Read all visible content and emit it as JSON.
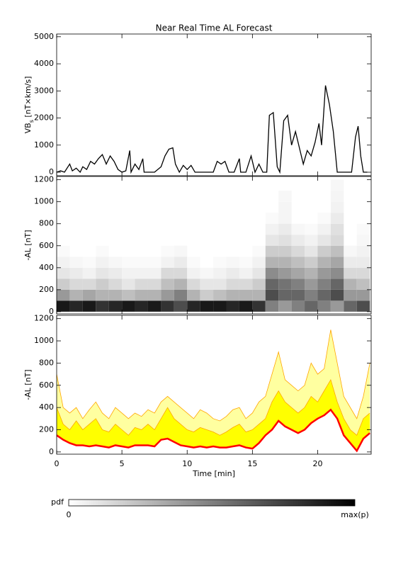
{
  "chart_data": [
    {
      "type": "line",
      "title": "Near Real Time AL Forecast",
      "ylabel": [
        "VB",
        "s",
        " [nT×km/s]"
      ],
      "x": [
        0,
        0.3,
        0.6,
        1.0,
        1.2,
        1.5,
        1.8,
        2.0,
        2.3,
        2.6,
        2.9,
        3.2,
        3.5,
        3.8,
        4.1,
        4.4,
        4.7,
        5.0,
        5.3,
        5.6,
        5.7,
        6.0,
        6.3,
        6.6,
        6.7,
        7.0,
        7.5,
        8.0,
        8.3,
        8.6,
        8.9,
        9.1,
        9.4,
        9.7,
        10.0,
        10.3,
        10.6,
        11.0,
        11.5,
        12.0,
        12.3,
        12.6,
        12.9,
        13.2,
        13.6,
        14.0,
        14.1,
        14.5,
        14.9,
        15.2,
        15.5,
        15.8,
        16.1,
        16.3,
        16.6,
        16.9,
        17.1,
        17.4,
        17.7,
        18.0,
        18.3,
        18.6,
        18.9,
        19.2,
        19.5,
        19.8,
        20.1,
        20.3,
        20.6,
        20.9,
        21.2,
        21.5,
        21.8,
        22.2,
        22.6,
        22.9,
        23.1,
        23.3,
        23.5,
        23.8
      ],
      "series": [
        {
          "color": "#000000",
          "values": [
            0,
            50,
            0,
            300,
            50,
            150,
            0,
            200,
            100,
            400,
            300,
            500,
            650,
            300,
            600,
            400,
            100,
            0,
            50,
            800,
            0,
            300,
            100,
            500,
            0,
            0,
            0,
            200,
            600,
            850,
            900,
            300,
            0,
            250,
            100,
            250,
            0,
            0,
            0,
            0,
            400,
            300,
            400,
            0,
            0,
            500,
            0,
            0,
            600,
            0,
            300,
            0,
            0,
            2100,
            2200,
            200,
            0,
            1900,
            2100,
            1000,
            1500,
            900,
            300,
            800,
            600,
            1100,
            1800,
            1000,
            3200,
            2500,
            1500,
            0,
            0,
            0,
            0,
            1300,
            1700,
            600,
            0,
            0
          ]
        }
      ],
      "xlim": [
        0,
        24.1
      ],
      "xticks": [
        0,
        5,
        10,
        15,
        20
      ],
      "ylim": [
        -130,
        5100
      ],
      "yticks": [
        0,
        1000,
        2000,
        3000,
        4000,
        5000
      ]
    },
    {
      "type": "heatmap",
      "ylabel": [
        "-AL [nT]"
      ],
      "xbins": [
        0,
        1,
        2,
        3,
        4,
        5,
        6,
        7,
        8,
        9,
        10,
        11,
        12,
        13,
        14,
        15,
        16,
        17,
        18,
        19,
        20,
        21,
        22,
        23,
        24
      ],
      "ybins": [
        0,
        100,
        200,
        300,
        400,
        500,
        600,
        700,
        800,
        900,
        1000,
        1100,
        1200
      ],
      "z": [
        [
          0.9,
          0.85,
          0.9,
          0.8,
          0.85,
          0.9,
          0.85,
          0.9,
          0.8,
          0.7,
          0.85,
          0.9,
          0.9,
          0.85,
          0.9,
          0.8,
          0.5,
          0.4,
          0.5,
          0.6,
          0.5,
          0.4,
          0.6,
          0.7
        ],
        [
          0.4,
          0.3,
          0.35,
          0.3,
          0.3,
          0.25,
          0.3,
          0.3,
          0.4,
          0.5,
          0.3,
          0.2,
          0.25,
          0.3,
          0.3,
          0.3,
          0.7,
          0.6,
          0.6,
          0.5,
          0.6,
          0.7,
          0.4,
          0.4
        ],
        [
          0.2,
          0.15,
          0.15,
          0.2,
          0.15,
          0.1,
          0.15,
          0.15,
          0.25,
          0.3,
          0.15,
          0.1,
          0.1,
          0.15,
          0.15,
          0.2,
          0.6,
          0.55,
          0.5,
          0.4,
          0.5,
          0.6,
          0.3,
          0.25
        ],
        [
          0.1,
          0.08,
          0.05,
          0.1,
          0.08,
          0.05,
          0.05,
          0.05,
          0.15,
          0.15,
          0.05,
          0.03,
          0.05,
          0.08,
          0.05,
          0.1,
          0.45,
          0.4,
          0.35,
          0.3,
          0.4,
          0.45,
          0.15,
          0.15
        ],
        [
          0.05,
          0.03,
          0.02,
          0.05,
          0.03,
          0.02,
          0.02,
          0.02,
          0.05,
          0.08,
          0.02,
          0,
          0.02,
          0.03,
          0.02,
          0.05,
          0.3,
          0.3,
          0.25,
          0.2,
          0.3,
          0.35,
          0.08,
          0.08
        ],
        [
          0.02,
          0,
          0,
          0.02,
          0,
          0,
          0,
          0,
          0.02,
          0.03,
          0,
          0,
          0,
          0,
          0,
          0.02,
          0.2,
          0.2,
          0.15,
          0.1,
          0.2,
          0.25,
          0.03,
          0.05
        ],
        [
          0,
          0,
          0,
          0,
          0,
          0,
          0,
          0,
          0,
          0,
          0,
          0,
          0,
          0,
          0,
          0,
          0.1,
          0.12,
          0.08,
          0.05,
          0.1,
          0.15,
          0,
          0.03
        ],
        [
          0,
          0,
          0,
          0,
          0,
          0,
          0,
          0,
          0,
          0,
          0,
          0,
          0,
          0,
          0,
          0,
          0.05,
          0.08,
          0.03,
          0.02,
          0.05,
          0.12,
          0,
          0.02
        ],
        [
          0,
          0,
          0,
          0,
          0,
          0,
          0,
          0,
          0,
          0,
          0,
          0,
          0,
          0,
          0,
          0,
          0.02,
          0.04,
          0,
          0,
          0.02,
          0.08,
          0,
          0
        ],
        [
          0,
          0,
          0,
          0,
          0,
          0,
          0,
          0,
          0,
          0,
          0,
          0,
          0,
          0,
          0,
          0,
          0,
          0.04,
          0,
          0,
          0,
          0.05,
          0,
          0
        ],
        [
          0,
          0,
          0,
          0,
          0,
          0,
          0,
          0,
          0,
          0,
          0,
          0,
          0,
          0,
          0,
          0,
          0,
          0.03,
          0,
          0,
          0,
          0.04,
          0,
          0
        ],
        [
          0,
          0,
          0,
          0,
          0,
          0,
          0,
          0,
          0,
          0,
          0,
          0,
          0,
          0,
          0,
          0,
          0,
          0,
          0,
          0,
          0,
          0.03,
          0,
          0
        ]
      ],
      "xlim": [
        0,
        24.1
      ],
      "xticks": [
        0,
        5,
        10,
        15,
        20
      ],
      "ylim": [
        -20,
        1230
      ],
      "yticks": [
        0,
        200,
        400,
        600,
        800,
        1000,
        1200
      ],
      "colorbar": [
        "pdf",
        "0",
        "max(p)"
      ]
    },
    {
      "type": "band",
      "ylabel": [
        "-AL [nT]"
      ],
      "xlabel": "Time [min]",
      "x": [
        0,
        0.5,
        1,
        1.5,
        2,
        2.5,
        3,
        3.5,
        4,
        4.5,
        5,
        5.5,
        6,
        6.5,
        7,
        7.5,
        8,
        8.5,
        9,
        9.5,
        10,
        10.5,
        11,
        11.5,
        12,
        12.5,
        13,
        13.5,
        14,
        14.5,
        15,
        15.5,
        16,
        16.5,
        17,
        17.5,
        18,
        18.5,
        19,
        19.5,
        20,
        20.5,
        21,
        21.5,
        22,
        22.5,
        23,
        23.5,
        24
      ],
      "series": [
        {
          "color": "#ff0000",
          "values": [
            150,
            110,
            80,
            60,
            60,
            50,
            60,
            50,
            40,
            60,
            50,
            40,
            60,
            60,
            60,
            50,
            110,
            120,
            90,
            60,
            50,
            40,
            50,
            40,
            50,
            40,
            40,
            50,
            60,
            40,
            30,
            80,
            150,
            200,
            280,
            230,
            200,
            170,
            200,
            260,
            300,
            330,
            380,
            300,
            150,
            80,
            10,
            120,
            170
          ]
        },
        {
          "color": "#ffa500",
          "fill": "#ffff00",
          "values": [
            400,
            250,
            200,
            280,
            200,
            250,
            300,
            200,
            180,
            250,
            200,
            150,
            220,
            200,
            250,
            200,
            300,
            400,
            300,
            250,
            200,
            180,
            220,
            200,
            180,
            150,
            180,
            220,
            250,
            180,
            200,
            250,
            300,
            450,
            550,
            450,
            400,
            350,
            400,
            500,
            450,
            550,
            650,
            450,
            300,
            200,
            150,
            300,
            350
          ]
        },
        {
          "color": "#ffa500",
          "fill": "#ffffa0",
          "values": [
            700,
            400,
            350,
            400,
            300,
            380,
            450,
            350,
            300,
            400,
            350,
            300,
            350,
            320,
            380,
            350,
            450,
            500,
            450,
            400,
            350,
            300,
            380,
            350,
            300,
            280,
            320,
            380,
            400,
            300,
            350,
            450,
            500,
            700,
            900,
            650,
            600,
            550,
            600,
            800,
            700,
            750,
            1100,
            800,
            500,
            400,
            300,
            500,
            800
          ]
        }
      ],
      "xlim": [
        0,
        24.1
      ],
      "xticks": [
        0,
        5,
        10,
        15,
        20
      ],
      "ylim": [
        -20,
        1230
      ],
      "yticks": [
        0,
        200,
        400,
        600,
        800,
        1000,
        1200
      ]
    }
  ]
}
